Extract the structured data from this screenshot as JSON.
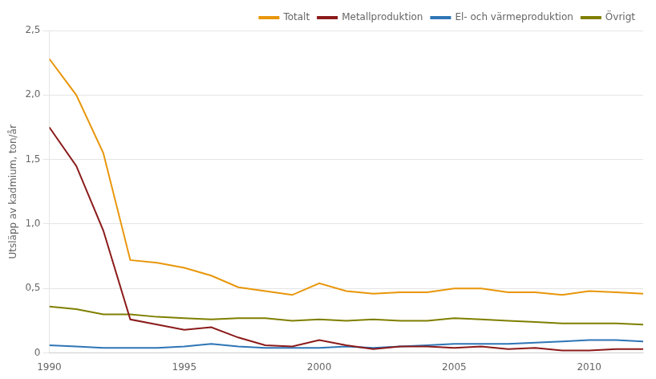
{
  "chart_data": {
    "type": "line",
    "y_label": "Utsläpp av kadmium, ton/år",
    "x": [
      1990,
      1991,
      1992,
      1993,
      1994,
      1995,
      1996,
      1997,
      1998,
      1999,
      2000,
      2001,
      2002,
      2003,
      2004,
      2005,
      2006,
      2007,
      2008,
      2009,
      2010,
      2011,
      2012
    ],
    "series": [
      {
        "name": "Totalt",
        "color": "#E8960A",
        "values": [
          2.28,
          2.0,
          1.55,
          0.72,
          0.7,
          0.66,
          0.6,
          0.51,
          0.48,
          0.45,
          0.54,
          0.48,
          0.46,
          0.47,
          0.47,
          0.5,
          0.5,
          0.47,
          0.47,
          0.45,
          0.48,
          0.47,
          0.46
        ]
      },
      {
        "name": "Metallproduktion",
        "color": "#8B1A1A",
        "values": [
          1.75,
          1.45,
          0.95,
          0.26,
          0.22,
          0.18,
          0.2,
          0.12,
          0.06,
          0.05,
          0.1,
          0.06,
          0.03,
          0.05,
          0.05,
          0.04,
          0.05,
          0.03,
          0.04,
          0.02,
          0.02,
          0.03,
          0.03
        ]
      },
      {
        "name": "El- och värmeproduktion",
        "color": "#2E75B6",
        "values": [
          0.06,
          0.05,
          0.04,
          0.04,
          0.04,
          0.05,
          0.07,
          0.05,
          0.04,
          0.04,
          0.04,
          0.05,
          0.04,
          0.05,
          0.06,
          0.07,
          0.07,
          0.07,
          0.08,
          0.09,
          0.1,
          0.1,
          0.09
        ]
      },
      {
        "name": "Övrigt",
        "color": "#7F7F00",
        "values": [
          0.36,
          0.34,
          0.3,
          0.3,
          0.28,
          0.27,
          0.26,
          0.27,
          0.27,
          0.25,
          0.26,
          0.25,
          0.26,
          0.25,
          0.25,
          0.27,
          0.26,
          0.25,
          0.24,
          0.23,
          0.23,
          0.23,
          0.22
        ]
      }
    ],
    "xlim": [
      1990,
      2012
    ],
    "xticks": [
      1990,
      1995,
      2000,
      2005,
      2010
    ],
    "ylim": [
      0,
      2.5
    ],
    "yticks": [
      0,
      {
        "value": 0.5,
        "label": "0,5"
      },
      {
        "value": 1.0,
        "label": "1,0"
      },
      {
        "value": 1.5,
        "label": "1,5"
      },
      {
        "value": 2.0,
        "label": "2,0"
      },
      {
        "value": 2.5,
        "label": "2,5"
      }
    ],
    "grid": true,
    "legend": "upper right"
  }
}
